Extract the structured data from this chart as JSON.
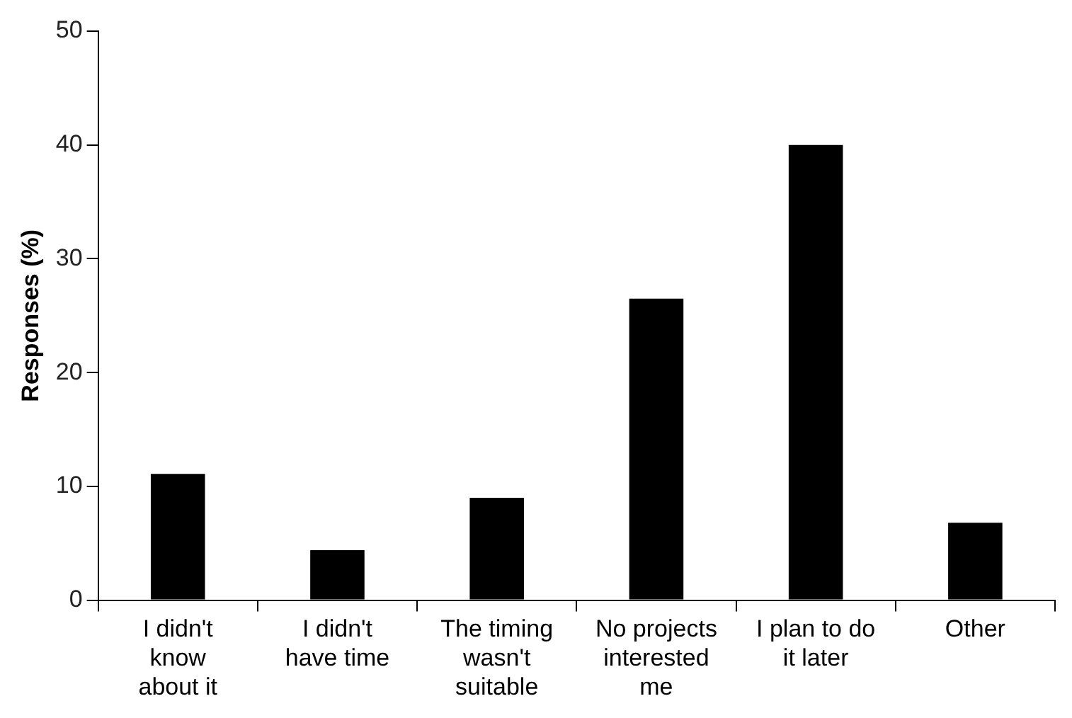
{
  "chart_data": {
    "type": "bar",
    "ylabel": "Responses (%)",
    "categories": [
      "I didn't\nknow\nabout it",
      "I didn't\nhave time",
      "The timing\nwasn't\nsuitable",
      "No projects\ninterested\nme",
      "I plan to do\nit later",
      "Other"
    ],
    "values": [
      11.1,
      4.4,
      9.0,
      26.5,
      40.0,
      6.8
    ],
    "color": "#000000",
    "ylim": [
      0,
      50
    ],
    "yticks": [
      0,
      10,
      20,
      30,
      40,
      50
    ],
    "grid": false,
    "legend": false
  }
}
